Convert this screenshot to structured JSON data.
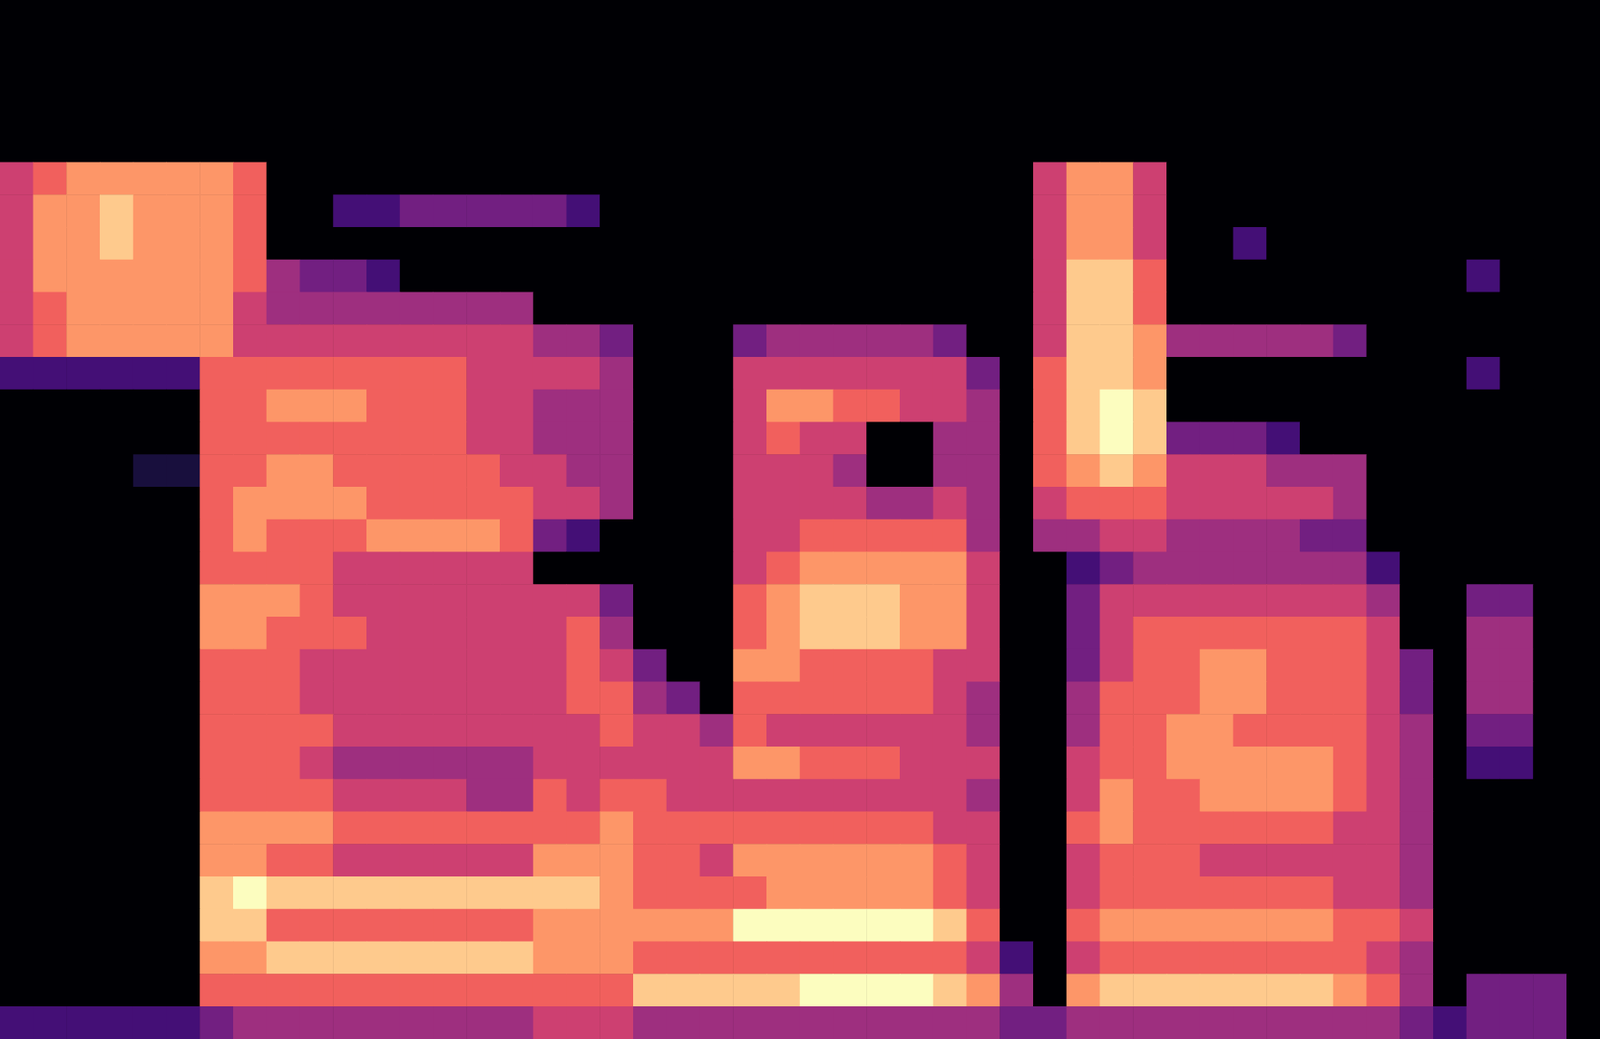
{
  "chart_data": {
    "type": "heatmap",
    "tick_labels": false,
    "grid": false,
    "zlim": [
      0,
      9
    ],
    "cells": [
      [
        0,
        0,
        0,
        0,
        0,
        0,
        0,
        0,
        0,
        0,
        0,
        0,
        0,
        0,
        0,
        0,
        0,
        0,
        0,
        0,
        0,
        0,
        0,
        0,
        0,
        0,
        0,
        0,
        0,
        0,
        0,
        0,
        0,
        0,
        0,
        0,
        0,
        0,
        0,
        0,
        0,
        0,
        0,
        0,
        0,
        0,
        0,
        0
      ],
      [
        0,
        0,
        0,
        0,
        0,
        0,
        0,
        0,
        0,
        0,
        0,
        0,
        0,
        0,
        0,
        0,
        0,
        0,
        0,
        0,
        0,
        0,
        0,
        0,
        0,
        0,
        0,
        0,
        0,
        0,
        0,
        0,
        0,
        0,
        0,
        0,
        0,
        0,
        0,
        0,
        0,
        0,
        0,
        0,
        0,
        0,
        0,
        0
      ],
      [
        0,
        0,
        0,
        0,
        0,
        0,
        0,
        0,
        0,
        0,
        0,
        0,
        0,
        0,
        0,
        0,
        0,
        0,
        0,
        0,
        0,
        0,
        0,
        0,
        0,
        0,
        0,
        0,
        0,
        0,
        0,
        0,
        0,
        0,
        0,
        0,
        0,
        0,
        0,
        0,
        0,
        0,
        0,
        0,
        0,
        0,
        0,
        0
      ],
      [
        0,
        0,
        0,
        0,
        0,
        0,
        0,
        0,
        0,
        0,
        0,
        0,
        0,
        0,
        0,
        0,
        0,
        0,
        0,
        0,
        0,
        0,
        0,
        0,
        0,
        0,
        0,
        0,
        0,
        0,
        0,
        0,
        0,
        0,
        0,
        0,
        0,
        0,
        0,
        0,
        0,
        0,
        0,
        0,
        0,
        0,
        0,
        0
      ],
      [
        0,
        0,
        0,
        0,
        0,
        0,
        0,
        0,
        0,
        0,
        0,
        0,
        0,
        0,
        0,
        0,
        0,
        0,
        0,
        0,
        0,
        0,
        0,
        0,
        0,
        0,
        0,
        0,
        0,
        0,
        0,
        0,
        0,
        0,
        0,
        0,
        0,
        0,
        0,
        0,
        0,
        0,
        0,
        0,
        0,
        0,
        0,
        0
      ],
      [
        5,
        6,
        7,
        7,
        7,
        7,
        7,
        6,
        0,
        0,
        0,
        0,
        0,
        0,
        0,
        0,
        0,
        0,
        0,
        0,
        0,
        0,
        0,
        0,
        0,
        0,
        0,
        0,
        0,
        0,
        0,
        5,
        7,
        7,
        5,
        0,
        0,
        0,
        0,
        0,
        0,
        0,
        0,
        0,
        0,
        0,
        0,
        0
      ],
      [
        5,
        7,
        7,
        8,
        7,
        7,
        7,
        6,
        0,
        0,
        2,
        2,
        3,
        3,
        3,
        3,
        3,
        2,
        0,
        0,
        0,
        0,
        0,
        0,
        0,
        0,
        0,
        0,
        0,
        0,
        0,
        5,
        7,
        7,
        5,
        0,
        0,
        0,
        0,
        0,
        0,
        0,
        0,
        0,
        0,
        0,
        0,
        0
      ],
      [
        5,
        7,
        7,
        8,
        7,
        7,
        7,
        6,
        0,
        0,
        0,
        0,
        0,
        0,
        0,
        0,
        0,
        0,
        0,
        0,
        0,
        0,
        0,
        0,
        0,
        0,
        0,
        0,
        0,
        0,
        0,
        5,
        7,
        7,
        5,
        0,
        0,
        2,
        0,
        0,
        0,
        0,
        0,
        0,
        0,
        0,
        0,
        0
      ],
      [
        5,
        7,
        7,
        7,
        7,
        7,
        7,
        6,
        4,
        3,
        3,
        2,
        0,
        0,
        0,
        0,
        0,
        0,
        0,
        0,
        0,
        0,
        0,
        0,
        0,
        0,
        0,
        0,
        0,
        0,
        0,
        5,
        8,
        8,
        6,
        0,
        0,
        0,
        0,
        0,
        0,
        0,
        0,
        0,
        2,
        0,
        0,
        0
      ],
      [
        5,
        6,
        7,
        7,
        7,
        7,
        7,
        5,
        4,
        4,
        4,
        4,
        4,
        4,
        4,
        4,
        0,
        0,
        0,
        0,
        0,
        0,
        0,
        0,
        0,
        0,
        0,
        0,
        0,
        0,
        0,
        5,
        8,
        8,
        6,
        0,
        0,
        0,
        0,
        0,
        0,
        0,
        0,
        0,
        0,
        0,
        0,
        0
      ],
      [
        5,
        6,
        7,
        7,
        7,
        7,
        7,
        5,
        5,
        5,
        5,
        5,
        5,
        5,
        5,
        5,
        4,
        4,
        3,
        0,
        0,
        0,
        3,
        4,
        4,
        4,
        4,
        4,
        3,
        0,
        0,
        5,
        8,
        8,
        7,
        4,
        4,
        4,
        4,
        4,
        3,
        0,
        0,
        0,
        0,
        0,
        0,
        0
      ],
      [
        2,
        2,
        2,
        2,
        2,
        2,
        6,
        6,
        6,
        6,
        6,
        6,
        6,
        6,
        5,
        5,
        5,
        5,
        4,
        0,
        0,
        0,
        5,
        5,
        5,
        5,
        5,
        5,
        5,
        3,
        0,
        6,
        8,
        8,
        7,
        0,
        0,
        0,
        0,
        0,
        0,
        0,
        0,
        0,
        2,
        0,
        0,
        0
      ],
      [
        0,
        0,
        0,
        0,
        0,
        0,
        6,
        6,
        7,
        7,
        7,
        6,
        6,
        6,
        5,
        5,
        4,
        4,
        4,
        0,
        0,
        0,
        5,
        7,
        7,
        6,
        6,
        5,
        5,
        4,
        0,
        6,
        8,
        9,
        8,
        0,
        0,
        0,
        0,
        0,
        0,
        0,
        0,
        0,
        0,
        0,
        0,
        0
      ],
      [
        0,
        0,
        0,
        0,
        0,
        0,
        6,
        6,
        6,
        6,
        6,
        6,
        6,
        6,
        5,
        5,
        4,
        4,
        4,
        0,
        0,
        0,
        5,
        6,
        5,
        5,
        0,
        0,
        4,
        4,
        0,
        6,
        8,
        9,
        8,
        3,
        3,
        3,
        2,
        0,
        0,
        0,
        0,
        0,
        0,
        0,
        0,
        0
      ],
      [
        0,
        0,
        0,
        0,
        1,
        1,
        6,
        6,
        7,
        7,
        6,
        6,
        6,
        6,
        6,
        5,
        5,
        4,
        4,
        0,
        0,
        0,
        5,
        5,
        5,
        4,
        0,
        0,
        4,
        4,
        0,
        6,
        7,
        8,
        7,
        5,
        5,
        5,
        4,
        4,
        4,
        0,
        0,
        0,
        0,
        0,
        0,
        0
      ],
      [
        0,
        0,
        0,
        0,
        0,
        0,
        6,
        7,
        7,
        7,
        7,
        6,
        6,
        6,
        6,
        6,
        5,
        5,
        4,
        0,
        0,
        0,
        5,
        5,
        5,
        5,
        4,
        4,
        5,
        4,
        0,
        5,
        6,
        6,
        6,
        5,
        5,
        5,
        5,
        5,
        4,
        0,
        0,
        0,
        0,
        0,
        0,
        0
      ],
      [
        0,
        0,
        0,
        0,
        0,
        0,
        6,
        7,
        6,
        6,
        6,
        7,
        7,
        7,
        7,
        6,
        3,
        2,
        0,
        0,
        0,
        0,
        5,
        5,
        6,
        6,
        6,
        6,
        6,
        4,
        0,
        4,
        4,
        5,
        5,
        4,
        4,
        4,
        4,
        3,
        3,
        0,
        0,
        0,
        0,
        0,
        0,
        0
      ],
      [
        0,
        0,
        0,
        0,
        0,
        0,
        6,
        6,
        6,
        6,
        5,
        5,
        5,
        5,
        5,
        5,
        0,
        0,
        0,
        0,
        0,
        0,
        5,
        6,
        7,
        7,
        7,
        7,
        7,
        5,
        0,
        0,
        2,
        3,
        4,
        4,
        4,
        4,
        4,
        4,
        4,
        2,
        0,
        0,
        0,
        0,
        0,
        0
      ],
      [
        0,
        0,
        0,
        0,
        0,
        0,
        7,
        7,
        7,
        6,
        5,
        5,
        5,
        5,
        5,
        5,
        5,
        5,
        3,
        0,
        0,
        0,
        6,
        7,
        8,
        8,
        8,
        7,
        7,
        5,
        0,
        0,
        3,
        5,
        5,
        5,
        5,
        5,
        5,
        5,
        5,
        4,
        0,
        0,
        3,
        3,
        0,
        0
      ],
      [
        0,
        0,
        0,
        0,
        0,
        0,
        7,
        7,
        6,
        6,
        6,
        5,
        5,
        5,
        5,
        5,
        5,
        6,
        4,
        0,
        0,
        0,
        6,
        7,
        8,
        8,
        8,
        7,
        7,
        5,
        0,
        0,
        3,
        5,
        6,
        6,
        6,
        6,
        6,
        6,
        6,
        5,
        0,
        0,
        4,
        4,
        0,
        0
      ],
      [
        0,
        0,
        0,
        0,
        0,
        0,
        6,
        6,
        6,
        5,
        5,
        5,
        5,
        5,
        5,
        5,
        5,
        6,
        5,
        3,
        0,
        0,
        7,
        7,
        6,
        6,
        6,
        6,
        5,
        5,
        0,
        0,
        3,
        5,
        6,
        6,
        7,
        7,
        6,
        6,
        6,
        5,
        3,
        0,
        4,
        4,
        0,
        0
      ],
      [
        0,
        0,
        0,
        0,
        0,
        0,
        6,
        6,
        6,
        5,
        5,
        5,
        5,
        5,
        5,
        5,
        5,
        6,
        6,
        4,
        3,
        0,
        6,
        6,
        6,
        6,
        6,
        6,
        5,
        4,
        0,
        0,
        4,
        6,
        6,
        6,
        7,
        7,
        6,
        6,
        6,
        5,
        3,
        0,
        4,
        4,
        0,
        0
      ],
      [
        0,
        0,
        0,
        0,
        0,
        0,
        6,
        6,
        6,
        6,
        5,
        5,
        5,
        5,
        5,
        5,
        5,
        5,
        6,
        5,
        5,
        4,
        6,
        5,
        5,
        5,
        5,
        5,
        5,
        4,
        0,
        0,
        4,
        6,
        6,
        7,
        7,
        6,
        6,
        6,
        6,
        5,
        4,
        0,
        3,
        3,
        0,
        0
      ],
      [
        0,
        0,
        0,
        0,
        0,
        0,
        6,
        6,
        6,
        5,
        4,
        4,
        4,
        4,
        4,
        4,
        5,
        5,
        5,
        5,
        5,
        5,
        7,
        7,
        6,
        6,
        6,
        5,
        5,
        5,
        0,
        0,
        5,
        6,
        6,
        7,
        7,
        7,
        7,
        7,
        6,
        5,
        4,
        0,
        2,
        2,
        0,
        0
      ],
      [
        0,
        0,
        0,
        0,
        0,
        0,
        6,
        6,
        6,
        6,
        5,
        5,
        5,
        5,
        4,
        4,
        6,
        5,
        6,
        6,
        5,
        5,
        5,
        5,
        5,
        5,
        5,
        5,
        5,
        4,
        0,
        0,
        5,
        7,
        6,
        6,
        7,
        7,
        7,
        7,
        6,
        5,
        4,
        0,
        0,
        0,
        0,
        0
      ],
      [
        0,
        0,
        0,
        0,
        0,
        0,
        7,
        7,
        7,
        7,
        6,
        6,
        6,
        6,
        6,
        6,
        6,
        6,
        7,
        6,
        6,
        6,
        6,
        6,
        6,
        6,
        6,
        6,
        5,
        5,
        0,
        0,
        6,
        7,
        6,
        6,
        6,
        6,
        6,
        6,
        5,
        5,
        4,
        0,
        0,
        0,
        0,
        0
      ],
      [
        0,
        0,
        0,
        0,
        0,
        0,
        7,
        7,
        6,
        6,
        5,
        5,
        5,
        5,
        5,
        5,
        7,
        7,
        7,
        6,
        6,
        5,
        7,
        7,
        7,
        7,
        7,
        7,
        6,
        5,
        0,
        0,
        5,
        6,
        6,
        6,
        5,
        5,
        5,
        5,
        5,
        5,
        4,
        0,
        0,
        0,
        0,
        0
      ],
      [
        0,
        0,
        0,
        0,
        0,
        0,
        8,
        9,
        8,
        8,
        8,
        8,
        8,
        8,
        8,
        8,
        8,
        8,
        7,
        6,
        6,
        6,
        6,
        7,
        7,
        7,
        7,
        7,
        6,
        5,
        0,
        0,
        5,
        6,
        6,
        6,
        6,
        6,
        6,
        6,
        5,
        5,
        4,
        0,
        0,
        0,
        0,
        0
      ],
      [
        0,
        0,
        0,
        0,
        0,
        0,
        8,
        8,
        6,
        6,
        6,
        6,
        6,
        6,
        6,
        6,
        7,
        7,
        7,
        7,
        7,
        7,
        9,
        9,
        9,
        9,
        9,
        9,
        8,
        6,
        0,
        0,
        6,
        7,
        7,
        7,
        7,
        7,
        7,
        7,
        6,
        6,
        5,
        0,
        0,
        0,
        0,
        0
      ],
      [
        0,
        0,
        0,
        0,
        0,
        0,
        7,
        7,
        8,
        8,
        8,
        8,
        8,
        8,
        8,
        8,
        7,
        7,
        7,
        6,
        6,
        6,
        6,
        6,
        6,
        6,
        6,
        6,
        6,
        5,
        2,
        0,
        5,
        6,
        6,
        6,
        6,
        6,
        6,
        6,
        6,
        5,
        4,
        0,
        0,
        0,
        0,
        0
      ],
      [
        0,
        0,
        0,
        0,
        0,
        0,
        6,
        6,
        6,
        6,
        6,
        6,
        6,
        6,
        6,
        6,
        6,
        6,
        6,
        8,
        8,
        8,
        8,
        8,
        9,
        9,
        9,
        9,
        8,
        7,
        4,
        0,
        7,
        8,
        8,
        8,
        8,
        8,
        8,
        8,
        7,
        6,
        4,
        0,
        3,
        3,
        3,
        0
      ],
      [
        2,
        2,
        2,
        2,
        2,
        2,
        3,
        4,
        4,
        4,
        4,
        4,
        4,
        4,
        4,
        4,
        5,
        5,
        5,
        4,
        4,
        4,
        4,
        4,
        4,
        4,
        4,
        4,
        4,
        4,
        3,
        3,
        4,
        4,
        4,
        4,
        4,
        4,
        4,
        4,
        4,
        4,
        3,
        2,
        3,
        3,
        3,
        0
      ]
    ]
  }
}
